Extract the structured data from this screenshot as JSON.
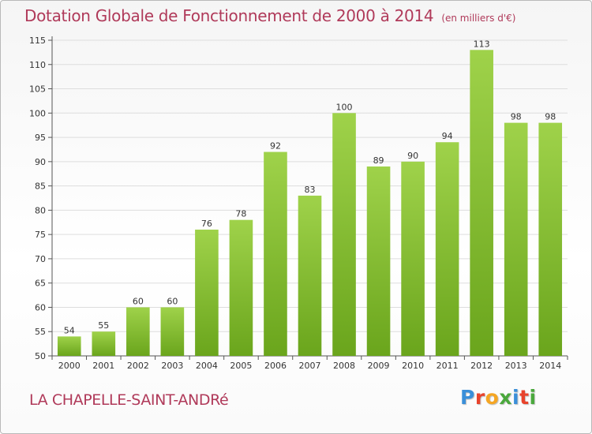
{
  "header": {
    "title": "Dotation Globale de Fonctionnement de 2000 à 2014",
    "subtitle": "(en milliers d'€)"
  },
  "footer": {
    "commune": "LA CHAPELLE-SAINT-ANDRé",
    "logo_letters": [
      "P",
      "r",
      "o",
      "x",
      "i",
      "t",
      "i"
    ],
    "logo_colors": [
      "#3a8fd9",
      "#e8432c",
      "#f5a623",
      "#4aa83c",
      "#3a8fd9",
      "#e8432c",
      "#4aa83c"
    ]
  },
  "chart_data": {
    "type": "bar",
    "title": "Dotation Globale de Fonctionnement de 2000 à 2014",
    "subtitle": "(en milliers d'€)",
    "xlabel": "",
    "ylabel": "",
    "categories": [
      "2000",
      "2001",
      "2002",
      "2003",
      "2004",
      "2005",
      "2006",
      "2007",
      "2008",
      "2009",
      "2010",
      "2011",
      "2012",
      "2013",
      "2014"
    ],
    "values": [
      54,
      55,
      60,
      60,
      76,
      78,
      92,
      83,
      100,
      89,
      90,
      94,
      113,
      98,
      98
    ],
    "ylim": [
      50,
      115
    ],
    "yticks": [
      50,
      55,
      60,
      65,
      70,
      75,
      80,
      85,
      90,
      95,
      100,
      105,
      110,
      115
    ],
    "grid": true,
    "bar_color_top": "#9fd24a",
    "bar_color_bottom": "#6aa51c",
    "grid_color": "#dddddd"
  }
}
